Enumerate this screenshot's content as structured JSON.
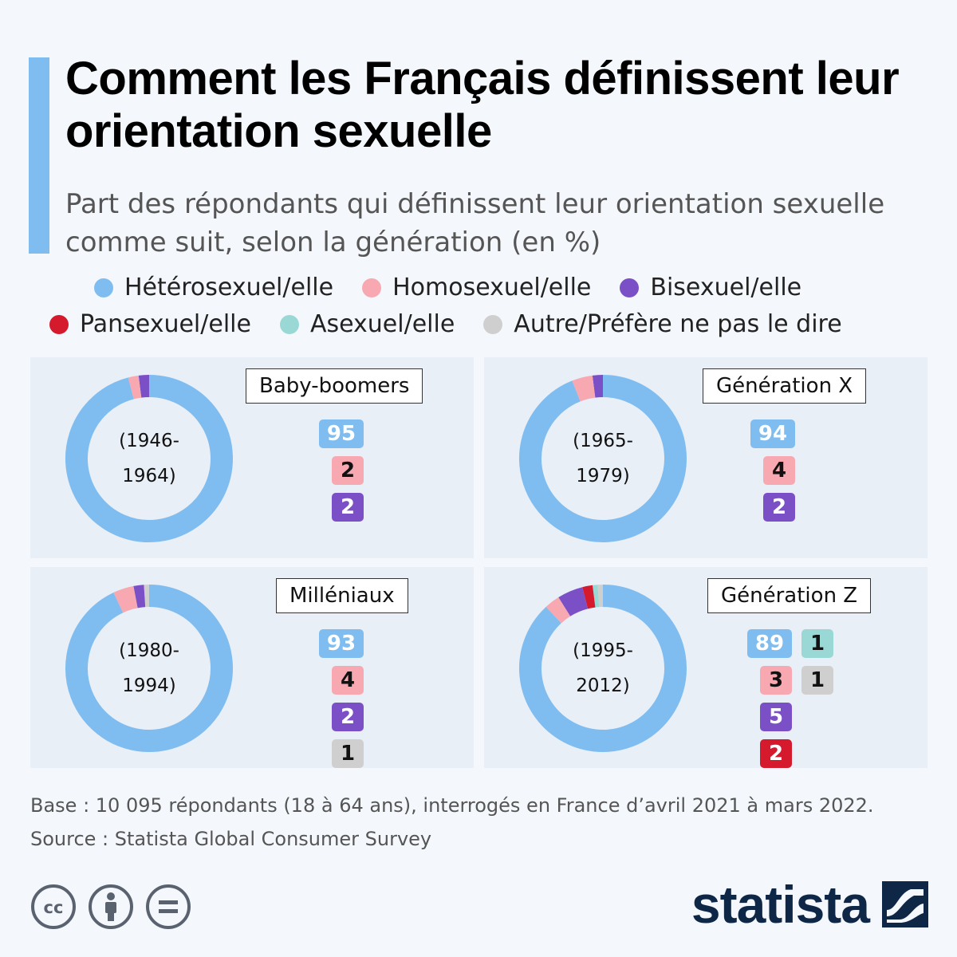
{
  "title": "Comment les Français définissent leur orientation sexuelle",
  "subtitle": "Part des répondants qui définissent leur orientation sexuelle comme suit, selon la génération (en %)",
  "legend": {
    "items": [
      {
        "label": "Hétérosexuel/elle",
        "color": "#7fbdf0"
      },
      {
        "label": "Homosexuel/elle",
        "color": "#f7a8b0"
      },
      {
        "label": "Bisexuel/elle",
        "color": "#7b4fc6"
      },
      {
        "label": "Pansexuel/elle",
        "color": "#d41a2c"
      },
      {
        "label": "Asexuel/elle",
        "color": "#9ad8d6"
      },
      {
        "label": "Autre/Préfère ne pas le dire",
        "color": "#cfcfcf"
      }
    ]
  },
  "panels": [
    {
      "name": "Baby-boomers",
      "years_line1": "(1946-",
      "years_line2": "1964)"
    },
    {
      "name": "Génération X",
      "years_line1": "(1965-",
      "years_line2": "1979)"
    },
    {
      "name": "Milléniaux",
      "years_line1": "(1980-",
      "years_line2": "1994)"
    },
    {
      "name": "Génération Z",
      "years_line1": "(1995-",
      "years_line2": "2012)"
    }
  ],
  "chart_data": {
    "type": "donut",
    "title": "Comment les Français définissent leur orientation sexuelle",
    "unit": "%",
    "categories": [
      "Hétérosexuel/elle",
      "Homosexuel/elle",
      "Bisexuel/elle",
      "Pansexuel/elle",
      "Asexuel/elle",
      "Autre/Préfère ne pas le dire"
    ],
    "colors": [
      "#7fbdf0",
      "#f7a8b0",
      "#7b4fc6",
      "#d41a2c",
      "#9ad8d6",
      "#cfcfcf"
    ],
    "series": [
      {
        "name": "Baby-boomers",
        "values": [
          95,
          2,
          2,
          null,
          null,
          null
        ]
      },
      {
        "name": "Génération X",
        "values": [
          94,
          4,
          2,
          null,
          null,
          null
        ]
      },
      {
        "name": "Milléniaux",
        "values": [
          93,
          4,
          2,
          null,
          null,
          1
        ]
      },
      {
        "name": "Génération Z",
        "values": [
          89,
          3,
          5,
          2,
          1,
          1
        ]
      }
    ]
  },
  "footer": {
    "base": "Base : 10 095 répondants (18 à 64 ans), interrogés en France d’avril 2021 à mars 2022.",
    "source": "Source : Statista Global Consumer Survey",
    "brand": "statista",
    "icons": [
      "cc-icon",
      "attribution-icon",
      "no-derivatives-icon"
    ]
  }
}
